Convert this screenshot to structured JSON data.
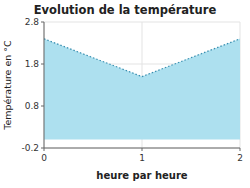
{
  "chart_data": {
    "type": "area",
    "title": "Evolution de la température",
    "xlabel": "heure par heure",
    "ylabel": "Température en °C",
    "x": [
      0,
      1,
      2
    ],
    "values": [
      2.4,
      1.5,
      2.4
    ],
    "xlim": [
      0,
      2
    ],
    "ylim": [
      -0.2,
      2.8
    ],
    "xticks": [
      0,
      1,
      2
    ],
    "yticks": [
      -0.2,
      0.8,
      1.8,
      2.8
    ],
    "color": "#ADE0EF",
    "line_style": "dotted",
    "grid": true
  }
}
